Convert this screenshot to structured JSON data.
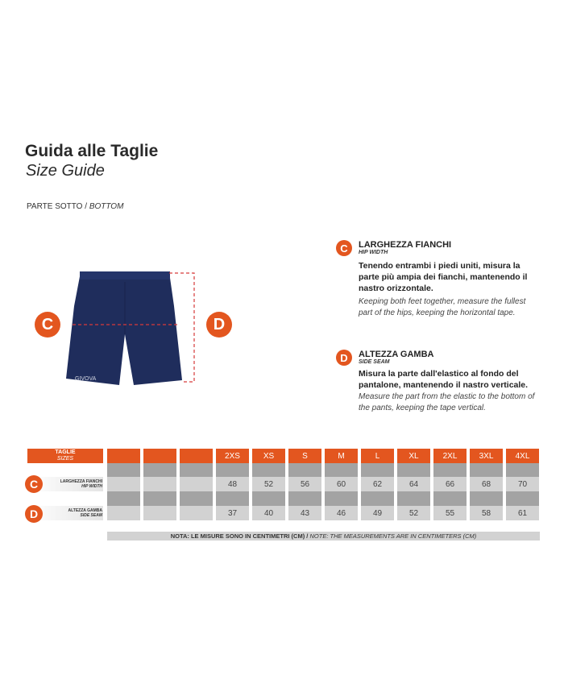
{
  "header": {
    "title": "Guida alle Taglie",
    "subtitle": "Size Guide"
  },
  "section": {
    "label_it": "PARTE SOTTO",
    "label_en": "BOTTOM"
  },
  "product": {
    "brand_logo": "GIVOVA",
    "color": "#1f2d5c"
  },
  "accent_color": "#e3561f",
  "measures": [
    {
      "letter": "C",
      "title": "LARGHEZZA FIANCHI",
      "subtitle": "HIP WIDTH",
      "text_it": "Tenendo entrambi i piedi uniti, misura la parte più ampia dei fianchi, mantenendo il nastro orizzontale.",
      "text_en": "Keeping both feet together, measure the fullest part of the hips, keeping the horizontal tape."
    },
    {
      "letter": "D",
      "title": "ALTEZZA GAMBA",
      "subtitle": "SIDE SEAM",
      "text_it": "Misura la parte dall'elastico al fondo del pantalone, mantenendo il nastro verticale.",
      "text_en": "Measure the part from the elastic to the bottom of the pants, keeping the tape vertical."
    }
  ],
  "table": {
    "header_it": "TAGLIE",
    "header_en": "SIZES",
    "sizes": [
      "",
      "",
      "",
      "2XS",
      "XS",
      "S",
      "M",
      "L",
      "XL",
      "2XL",
      "3XL",
      "4XL"
    ],
    "rows": [
      {
        "letter": "C",
        "label_it": "LARGHEZZA FIANCHI",
        "label_en": "HIP WIDTH",
        "values": [
          "",
          "",
          "",
          "48",
          "52",
          "56",
          "60",
          "62",
          "64",
          "66",
          "68",
          "70"
        ]
      },
      {
        "letter": "D",
        "label_it": "ALTEZZA GAMBA",
        "label_en": "SIDE SEAM",
        "values": [
          "",
          "",
          "",
          "37",
          "40",
          "43",
          "46",
          "49",
          "52",
          "55",
          "58",
          "61"
        ]
      }
    ],
    "note_it": "NOTA: LE MISURE SONO IN CENTIMETRI (CM)",
    "note_en": "NOTE: THE MEASUREMENTS ARE IN CENTIMETERS (CM)"
  }
}
